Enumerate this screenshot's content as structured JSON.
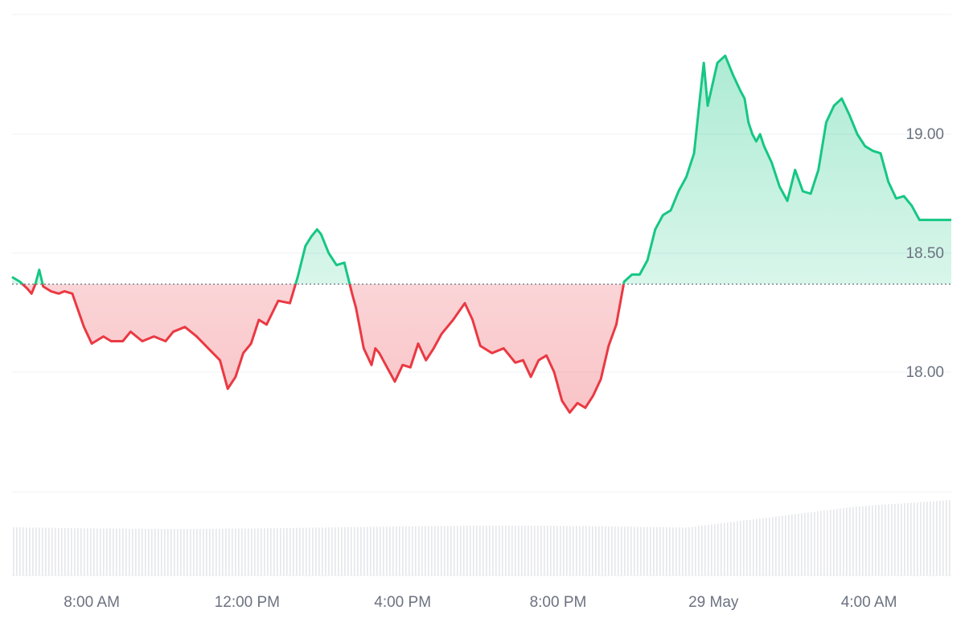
{
  "chart_data": {
    "type": "area",
    "title": "",
    "xlabel": "",
    "ylabel": "",
    "baseline": 18.37,
    "ylim": [
      17.5,
      19.5
    ],
    "y_ticks": [
      {
        "value": 18.0,
        "label": "18.00"
      },
      {
        "value": 18.5,
        "label": "18.50"
      },
      {
        "value": 19.0,
        "label": "19.00"
      }
    ],
    "x_ticks": [
      "8:00 AM",
      "12:00 PM",
      "4:00 PM",
      "8:00 PM",
      "29 May",
      "4:00 AM"
    ],
    "x_tick_hours": [
      8,
      12,
      16,
      20,
      24,
      28
    ],
    "x_range_hours": [
      5.95,
      30.12
    ],
    "grid": true,
    "legend": "none",
    "colors": {
      "up": "#16c784",
      "down": "#ea3943",
      "grid": "#eef0f3",
      "volume": "#e5e7eb",
      "baseline": "#6b7280"
    },
    "series": [
      {
        "x": [
          5.95,
          6.15,
          6.35,
          6.45,
          6.55,
          6.65,
          6.75,
          6.95,
          7.15,
          7.3,
          7.5,
          7.8,
          8.0,
          8.3,
          8.5,
          8.8,
          9.0,
          9.3,
          9.6,
          9.9,
          10.1,
          10.4,
          10.7,
          11.0,
          11.3,
          11.5,
          11.7,
          11.9,
          12.1,
          12.3,
          12.5,
          12.8,
          13.1,
          13.3,
          13.5,
          13.65,
          13.8,
          13.9,
          14.1,
          14.3,
          14.5,
          14.7,
          14.8,
          15.0,
          15.2,
          15.3,
          15.4,
          15.6,
          15.8,
          16.0,
          16.2,
          16.4,
          16.6,
          16.8,
          17.0,
          17.3,
          17.6,
          17.8,
          18.0,
          18.3,
          18.6,
          18.9,
          19.1,
          19.3,
          19.5,
          19.7,
          19.9,
          20.1,
          20.3,
          20.5,
          20.7,
          20.9,
          21.1,
          21.3,
          21.5,
          21.7,
          21.9,
          22.1,
          22.3,
          22.5,
          22.7,
          22.9,
          23.1,
          23.3,
          23.5,
          23.65,
          23.75,
          23.85,
          24.1,
          24.3,
          24.5,
          24.7,
          24.8,
          24.9,
          25.0,
          25.1,
          25.2,
          25.3,
          25.5,
          25.7,
          25.9,
          26.1,
          26.3,
          26.5,
          26.7,
          26.9,
          27.1,
          27.3,
          27.5,
          27.7,
          27.9,
          28.1,
          28.3,
          28.5,
          28.7,
          28.9,
          29.1,
          29.3,
          29.5,
          29.7,
          29.9,
          30.12
        ],
        "values": [
          18.4,
          18.38,
          18.35,
          18.33,
          18.37,
          18.43,
          18.36,
          18.34,
          18.33,
          18.34,
          18.33,
          18.19,
          18.12,
          18.15,
          18.13,
          18.13,
          18.17,
          18.13,
          18.15,
          18.13,
          18.17,
          18.19,
          18.15,
          18.1,
          18.05,
          17.93,
          17.98,
          18.08,
          18.12,
          18.22,
          18.2,
          18.3,
          18.29,
          18.4,
          18.53,
          18.57,
          18.6,
          18.58,
          18.5,
          18.45,
          18.46,
          18.33,
          18.27,
          18.1,
          18.03,
          18.1,
          18.08,
          18.02,
          17.96,
          18.03,
          18.02,
          18.12,
          18.05,
          18.1,
          18.16,
          18.22,
          18.29,
          18.22,
          18.11,
          18.08,
          18.1,
          18.04,
          18.05,
          17.98,
          18.05,
          18.07,
          18.0,
          17.88,
          17.83,
          17.87,
          17.85,
          17.9,
          17.97,
          18.11,
          18.2,
          18.38,
          18.41,
          18.41,
          18.47,
          18.6,
          18.66,
          18.68,
          18.76,
          18.82,
          18.92,
          19.15,
          19.3,
          19.12,
          19.3,
          19.33,
          19.25,
          19.18,
          19.15,
          19.05,
          19.0,
          18.97,
          19.0,
          18.95,
          18.88,
          18.78,
          18.72,
          18.85,
          18.76,
          18.75,
          18.85,
          19.05,
          19.12,
          19.15,
          19.08,
          19.0,
          18.95,
          18.93,
          18.92,
          18.8,
          18.73,
          18.74,
          18.7,
          18.64,
          18.64,
          18.64,
          18.64,
          18.64
        ]
      }
    ]
  }
}
